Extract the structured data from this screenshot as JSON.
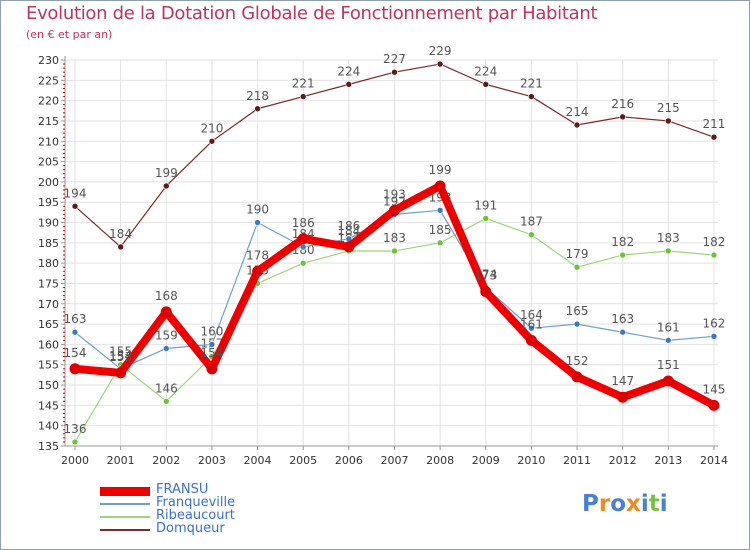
{
  "title": "Evolution de la Dotation Globale de Fonctionnement par Habitant",
  "subtitle": "(en € et par an)",
  "logo": {
    "text": "Proxiti",
    "letters": [
      "P",
      "r",
      "o",
      "x",
      "i",
      "t",
      "i"
    ]
  },
  "colors": {
    "grid": "#e2e2e2",
    "axis": "#999999",
    "axis_label": "#333333",
    "value_label": "#555555",
    "tick_red": "#cc0000",
    "logo": [
      "#4a7fd4",
      "#f08a1c",
      "#4a7fd4",
      "#f08a1c",
      "#4a7fd4",
      "#7cc242",
      "#4a7fd4"
    ]
  },
  "chart_data": {
    "type": "line",
    "title": "Evolution de la Dotation Globale de Fonctionnement par Habitant",
    "subtitle": "(en € et par an)",
    "xlabel": "",
    "ylabel": "",
    "ylim": [
      135,
      230
    ],
    "yticks": [
      135,
      140,
      145,
      150,
      155,
      160,
      165,
      170,
      175,
      180,
      185,
      190,
      195,
      200,
      205,
      210,
      215,
      220,
      225,
      230
    ],
    "grid": true,
    "legend_position": "bottom-left",
    "x": [
      "2000",
      "2001",
      "2002",
      "2003",
      "2004",
      "2005",
      "2006",
      "2007",
      "2008",
      "2009",
      "2010",
      "2011",
      "2012",
      "2013",
      "2014"
    ],
    "series": [
      {
        "name": "Domqueur",
        "color": "#7b2a2a",
        "marker": "#5a1c1c",
        "width": 1.2,
        "values": [
          194,
          184,
          199,
          210,
          218,
          221,
          224,
          227,
          229,
          224,
          221,
          214,
          216,
          215,
          211
        ],
        "labels": [
          "194",
          "184",
          "199",
          "210",
          "218",
          "221",
          "224",
          "227",
          "229",
          "224",
          "221",
          "214",
          "216",
          "215",
          "211"
        ]
      },
      {
        "name": "Ribeaucourt",
        "color": "#9ed57a",
        "marker": "#6cc23a",
        "width": 1.2,
        "values": [
          136,
          155,
          146,
          157,
          175,
          180,
          183,
          183,
          185,
          191,
          187,
          179,
          182,
          183,
          182
        ],
        "labels": [
          "136",
          "155",
          "146",
          "157",
          "175",
          "180",
          "183",
          "183",
          "185",
          "191",
          "187",
          "179",
          "182",
          "183",
          "182"
        ]
      },
      {
        "name": "Franqueville",
        "color": "#6f9fcf",
        "marker": "#3f78c2",
        "width": 1.2,
        "values": [
          163,
          154,
          159,
          160,
          190,
          184,
          186,
          192,
          193,
          174,
          164,
          165,
          163,
          161,
          162
        ],
        "labels": [
          "163",
          "154",
          "159",
          "160",
          "190",
          "184",
          "186",
          "192",
          "193",
          "174",
          "164",
          "165",
          "163",
          "161",
          "162"
        ]
      },
      {
        "name": "FRANSU",
        "color": "#ee0000",
        "marker": "#dd0000",
        "width": 8,
        "values": [
          154,
          153,
          168,
          154,
          178,
          186,
          184,
          193,
          199,
          173,
          161,
          152,
          147,
          151,
          145
        ],
        "labels": [
          "154",
          "153",
          "168",
          "154",
          "178",
          "186",
          "184",
          "193",
          "199",
          "173",
          "161",
          "152",
          "147",
          "151",
          "145"
        ]
      }
    ],
    "legend": [
      "FRANSU",
      "Franqueville",
      "Ribeaucourt",
      "Domqueur"
    ]
  }
}
